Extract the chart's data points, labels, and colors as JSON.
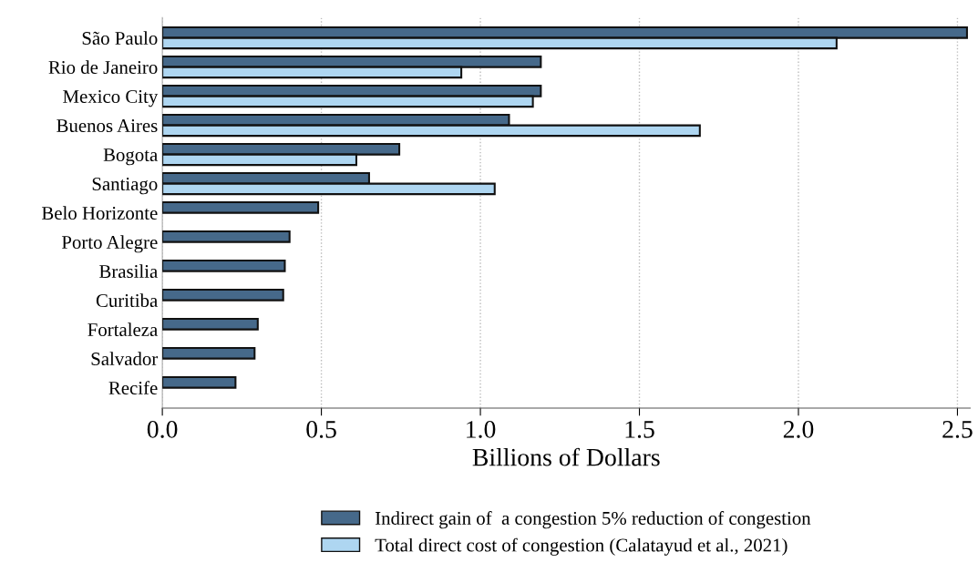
{
  "chart_data": {
    "type": "bar",
    "orientation": "horizontal",
    "xlabel": "Billions of Dollars",
    "categories": [
      "São Paulo",
      "Rio de Janeiro",
      "Mexico City",
      "Buenos Aires",
      "Bogota",
      "Santiago",
      "Belo Horizonte",
      "Porto Alegre",
      "Brasilia",
      "Curitiba",
      "Fortaleza",
      "Salvador",
      "Recife"
    ],
    "series": [
      {
        "name": "Indirect gain of  a congestion 5% reduction of congestion",
        "color": "#46698a",
        "values": [
          2.53,
          1.19,
          1.19,
          1.09,
          0.745,
          0.65,
          0.49,
          0.4,
          0.385,
          0.38,
          0.3,
          0.29,
          0.23
        ]
      },
      {
        "name": "Total direct cost of congestion (Calatayud et al., 2021)",
        "color": "#aed6f1",
        "values": [
          2.12,
          0.94,
          1.165,
          1.69,
          0.61,
          1.045,
          null,
          null,
          null,
          null,
          null,
          null,
          null
        ]
      }
    ],
    "xlim": [
      0,
      2.54
    ],
    "xticks": [
      {
        "value": 0,
        "label": "0.0"
      },
      0.5,
      {
        "value": 1,
        "label": "1.0"
      },
      1.5,
      {
        "value": 2,
        "label": "2.0"
      },
      2.5
    ],
    "grid": "x",
    "legend": "bottom"
  }
}
